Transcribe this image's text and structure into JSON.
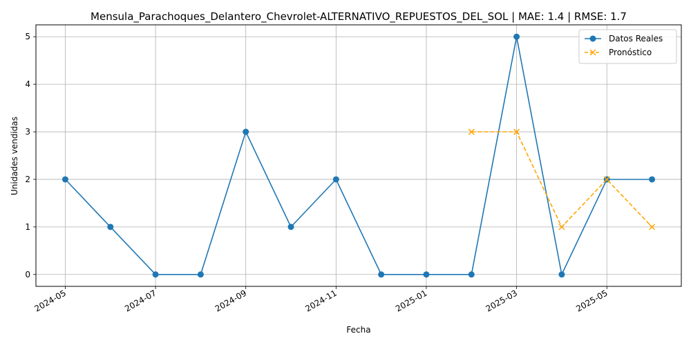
{
  "chart_data": {
    "type": "line",
    "title": "Mensula_Parachoques_Delantero_Chevrolet-ALTERNATIVO_REPUESTOS_DEL_SOL | MAE: 1.4 | RMSE: 1.7",
    "xlabel": "Fecha",
    "ylabel": "Unidades vendidas",
    "x_ticks": [
      "2024-05",
      "2024-07",
      "2024-09",
      "2024-11",
      "2025-01",
      "2025-03",
      "2025-05"
    ],
    "y_ticks": [
      "0",
      "1",
      "2",
      "3",
      "4",
      "5"
    ],
    "ylim": [
      -0.25,
      5.25
    ],
    "grid": true,
    "legend_position": "top-right",
    "series": [
      {
        "name": "Datos Reales",
        "color": "#1f77b4",
        "marker": "circle",
        "line_style": "solid",
        "x": [
          "2024-05-01",
          "2024-06-01",
          "2024-07-01",
          "2024-08-01",
          "2024-09-01",
          "2024-10-01",
          "2024-11-01",
          "2024-12-01",
          "2025-01-01",
          "2025-02-01",
          "2025-03-01",
          "2025-04-01",
          "2025-05-01",
          "2025-06-01"
        ],
        "values": [
          2,
          1,
          0,
          0,
          3,
          1,
          2,
          0,
          0,
          0,
          5,
          0,
          2,
          2
        ]
      },
      {
        "name": "Pronóstico",
        "color": "#ffa500",
        "marker": "x",
        "line_style": "dashed",
        "x": [
          "2025-02-01",
          "2025-03-01",
          "2025-04-01",
          "2025-05-01",
          "2025-06-01"
        ],
        "values": [
          3,
          3,
          1,
          2,
          1
        ]
      }
    ]
  }
}
